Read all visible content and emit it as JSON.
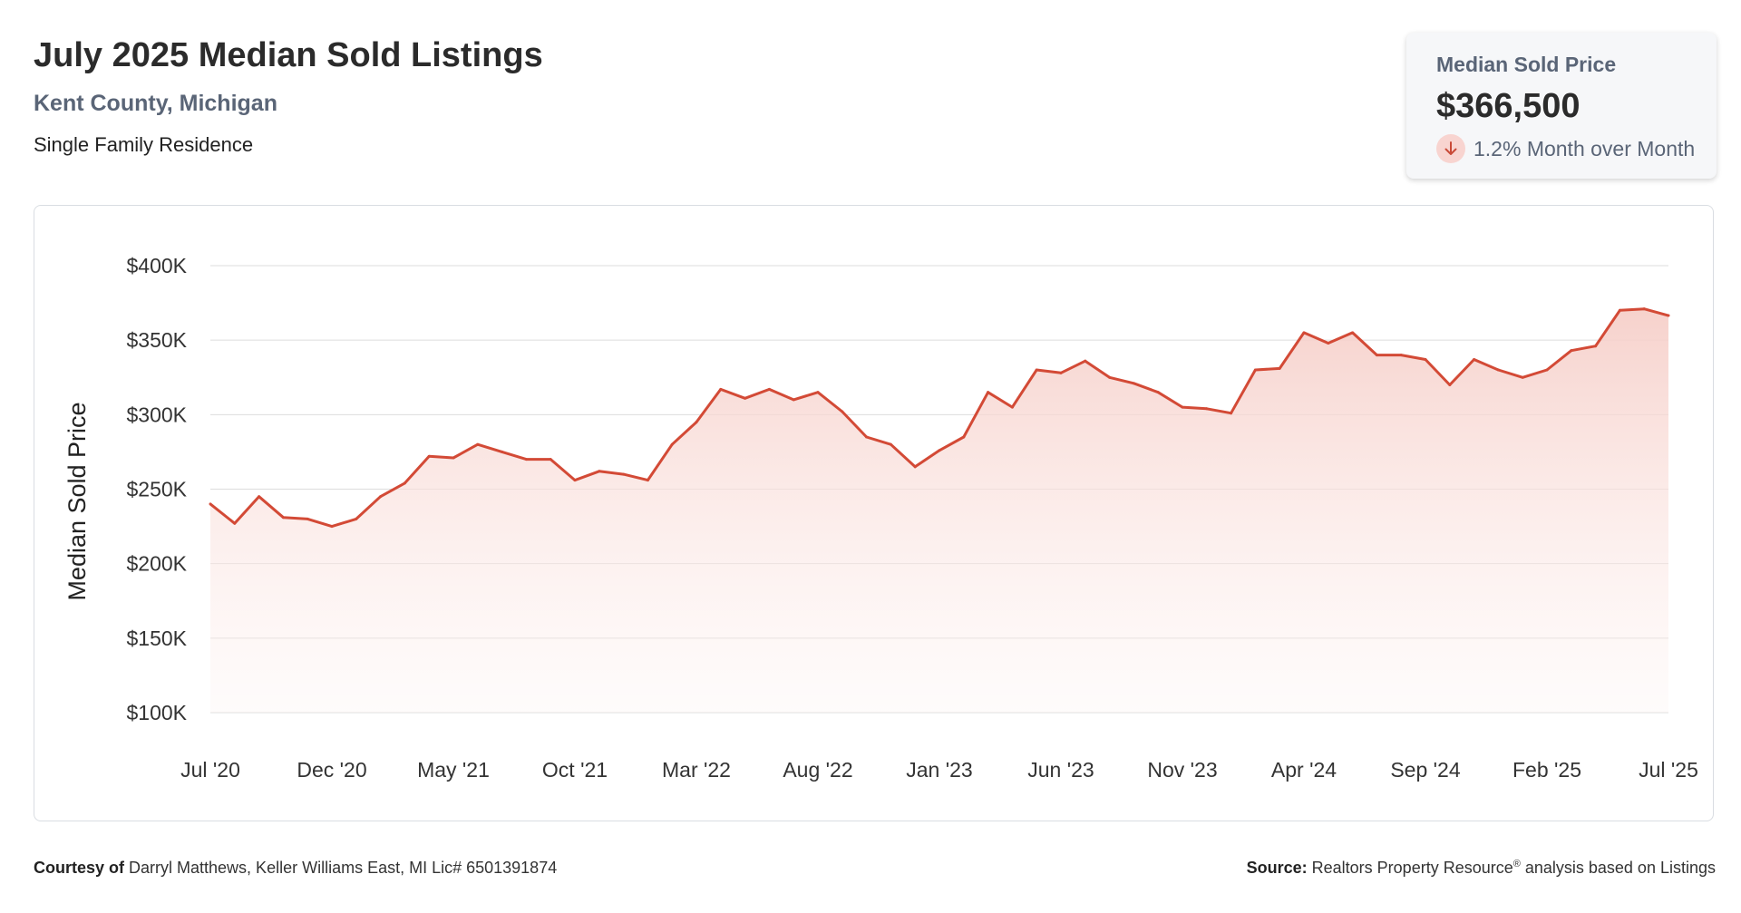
{
  "header": {
    "title": "July 2025 Median Sold Listings",
    "location": "Kent County, Michigan",
    "property_type": "Single Family Residence"
  },
  "kpi": {
    "label": "Median Sold Price",
    "value": "$366,500",
    "change": "1.2% Month over Month",
    "direction": "down",
    "icon": "arrow-down-icon",
    "icon_color": "#c94a38",
    "icon_bg": "#f8d4d0"
  },
  "footer": {
    "courtesy_label": "Courtesy of",
    "courtesy_text": "Darryl Matthews, Keller Williams East, MI Lic# 6501391874",
    "source_label": "Source:",
    "source_text": "Realtors Property Resource",
    "source_mark": "®",
    "source_suffix": "analysis based on Listings"
  },
  "colors": {
    "line": "#d34a36",
    "area_top": "#f6cfc9",
    "grid": "#dddddd"
  },
  "chart_data": {
    "type": "area",
    "ylabel": "Median Sold Price",
    "ylim": [
      100000,
      400000
    ],
    "yticks": [
      100000,
      150000,
      200000,
      250000,
      300000,
      350000,
      400000
    ],
    "ytick_labels": [
      "$100K",
      "$150K",
      "$200K",
      "$250K",
      "$300K",
      "$350K",
      "$400K"
    ],
    "xtick_labels": [
      "Jul '20",
      "Dec '20",
      "May '21",
      "Oct '21",
      "Mar '22",
      "Aug '22",
      "Jan '23",
      "Jun '23",
      "Nov '23",
      "Apr '24",
      "Sep '24",
      "Feb '25",
      "Jul '25"
    ],
    "xtick_every": 5,
    "grid": true,
    "legend": "none",
    "x": [
      "Jul '20",
      "Aug '20",
      "Sep '20",
      "Oct '20",
      "Nov '20",
      "Dec '20",
      "Jan '21",
      "Feb '21",
      "Mar '21",
      "Apr '21",
      "May '21",
      "Jun '21",
      "Jul '21",
      "Aug '21",
      "Sep '21",
      "Oct '21",
      "Nov '21",
      "Dec '21",
      "Jan '22",
      "Feb '22",
      "Mar '22",
      "Apr '22",
      "May '22",
      "Jun '22",
      "Jul '22",
      "Aug '22",
      "Sep '22",
      "Oct '22",
      "Nov '22",
      "Dec '22",
      "Jan '23",
      "Feb '23",
      "Mar '23",
      "Apr '23",
      "May '23",
      "Jun '23",
      "Jul '23",
      "Aug '23",
      "Sep '23",
      "Oct '23",
      "Nov '23",
      "Dec '23",
      "Jan '24",
      "Feb '24",
      "Mar '24",
      "Apr '24",
      "May '24",
      "Jun '24",
      "Jul '24",
      "Aug '24",
      "Sep '24",
      "Oct '24",
      "Nov '24",
      "Dec '24",
      "Jan '25",
      "Feb '25",
      "Mar '25",
      "Apr '25",
      "May '25",
      "Jun '25",
      "Jul '25"
    ],
    "values": [
      240000,
      227000,
      245000,
      231000,
      230000,
      225000,
      230000,
      245000,
      254000,
      272000,
      271000,
      280000,
      275000,
      270000,
      270000,
      256000,
      262000,
      260000,
      256000,
      280000,
      295000,
      317000,
      311000,
      317000,
      310000,
      315000,
      302000,
      285000,
      280000,
      265000,
      276000,
      285000,
      315000,
      305000,
      330000,
      328000,
      336000,
      325000,
      321000,
      315000,
      305000,
      304000,
      301000,
      330000,
      331000,
      355000,
      348000,
      355000,
      340000,
      340000,
      337000,
      320000,
      337000,
      330000,
      325000,
      330000,
      343000,
      346000,
      370000,
      371000,
      366500
    ]
  }
}
